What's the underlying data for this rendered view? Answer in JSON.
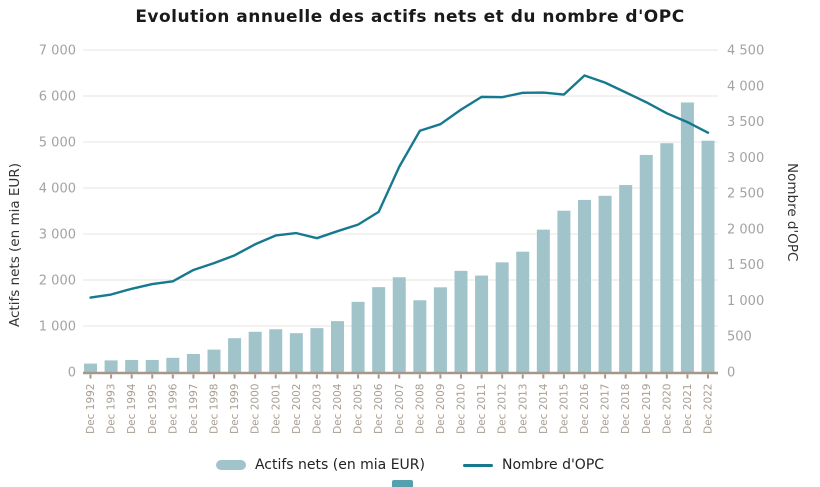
{
  "title": "Evolution annuelle des actifs nets et du nombre d'OPC",
  "colors": {
    "bar": "#a1c4cb",
    "line": "#17798f",
    "grid": "#e7e5e2",
    "axis": "#a5988a",
    "left_tick_text": "#a3a3a3",
    "right_tick_text": "#a3a3a3",
    "x_tick_text": "#a89e92",
    "title_text": "#1a1a1a",
    "axis_title_text": "#333333",
    "legend_text": "#222222",
    "bottom_widget": "#55a0af"
  },
  "chart_data": {
    "type": "bar+line",
    "title": "Evolution annuelle des actifs nets et du nombre d'OPC",
    "grid": true,
    "legend_position": "bottom",
    "categories": [
      "Dec 1992",
      "Dec 1993",
      "Dec 1994",
      "Dec 1995",
      "Dec 1996",
      "Dec 1997",
      "Dec 1998",
      "Dec 1999",
      "Dec 2000",
      "Dec 2001",
      "Dec 2002",
      "Dec 2003",
      "Dec 2004",
      "Dec 2005",
      "Dec 2006",
      "Dec 2007",
      "Dec 2008",
      "Dec 2009",
      "Dec 2010",
      "Dec 2011",
      "Dec 2012",
      "Dec 2013",
      "Dec 2014",
      "Dec 2015",
      "Dec 2016",
      "Dec 2017",
      "Dec 2018",
      "Dec 2019",
      "Dec 2020",
      "Dec 2021",
      "Dec 2022"
    ],
    "series": [
      {
        "name": "Actifs nets (en mia EUR)",
        "type": "bar",
        "axis": "left",
        "values": [
          182.9,
          252.6,
          262.4,
          261.8,
          308.6,
          391.8,
          486.8,
          734.5,
          874.6,
          928.4,
          844.5,
          953.3,
          1106.2,
          1525.2,
          1844.8,
          2059.4,
          1559.7,
          1840.9,
          2199.0,
          2096.5,
          2383.8,
          2615.4,
          3094.9,
          3506.2,
          3741.3,
          3830.0,
          4064.6,
          4718.9,
          4973.8,
          5859.4,
          5028.5
        ]
      },
      {
        "name": "Nombre d'OPC",
        "type": "line",
        "axis": "right",
        "values": [
          1040,
          1083,
          1163,
          1229,
          1268,
          1426,
          1521,
          1630,
          1785,
          1908,
          1941,
          1870,
          1968,
          2060,
          2238,
          2868,
          3371,
          3463,
          3667,
          3845,
          3841,
          3902,
          3905,
          3878,
          4144,
          4044,
          3908,
          3770,
          3615,
          3492,
          3344
        ]
      }
    ],
    "left_axis": {
      "title": "Actifs nets (en mia EUR)",
      "min": 0,
      "max": 7000,
      "step": 1000,
      "tick_labels": [
        "0",
        "1 000",
        "2 000",
        "3 000",
        "4 000",
        "5 000",
        "6 000",
        "7 000"
      ]
    },
    "right_axis": {
      "title": "Nombre d'OPC",
      "min": 0,
      "max": 4500,
      "step": 500,
      "tick_labels": [
        "0",
        "500",
        "1 000",
        "1 500",
        "2 000",
        "2 500",
        "3 000",
        "3 500",
        "4 000",
        "4 500"
      ]
    }
  }
}
